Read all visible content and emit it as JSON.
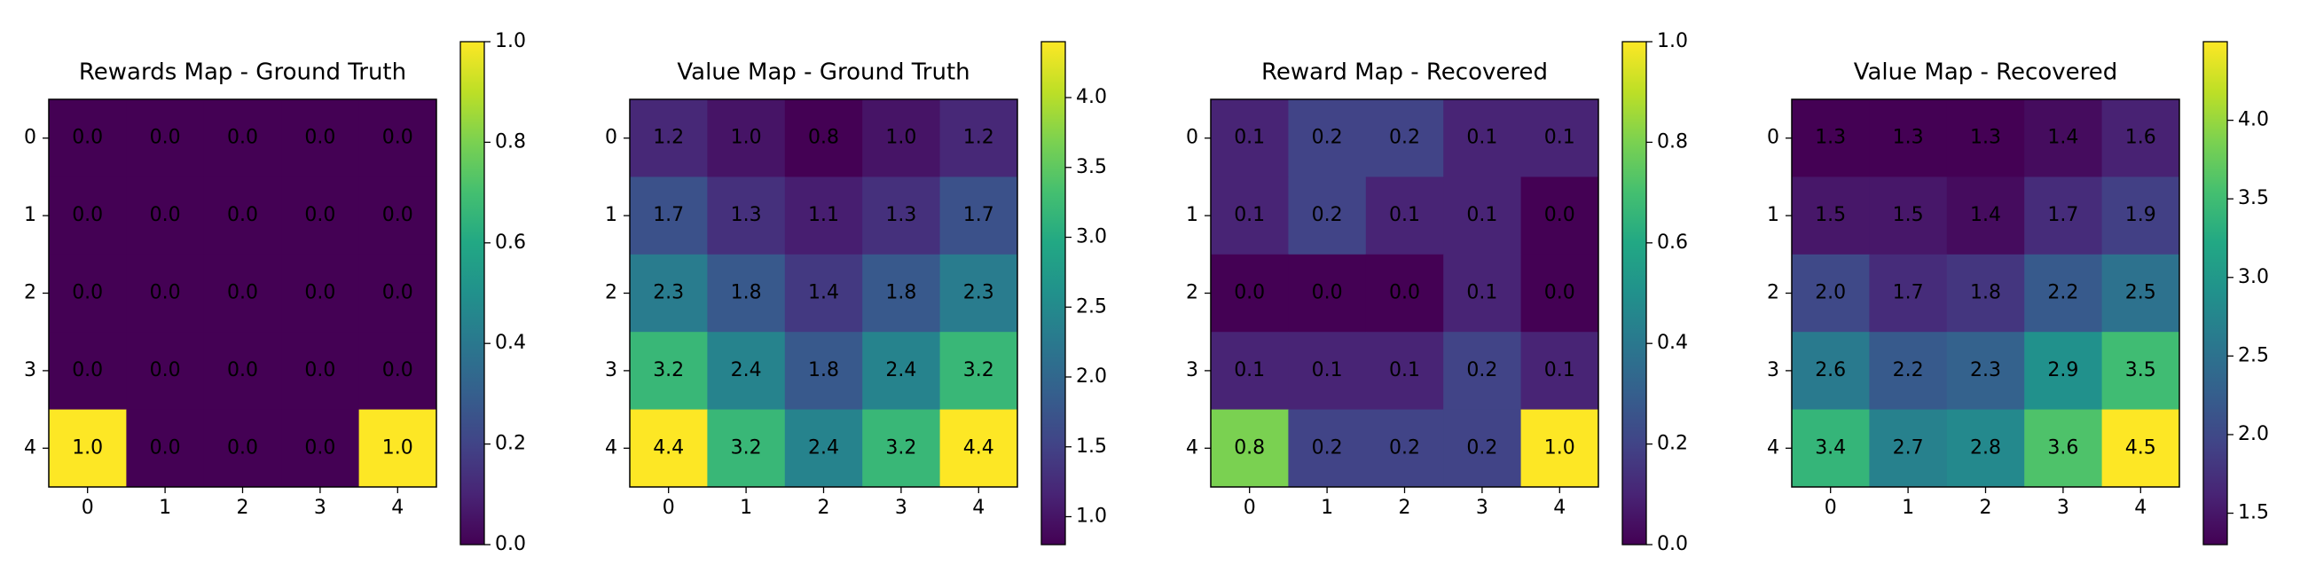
{
  "chart_data": [
    {
      "type": "heatmap",
      "title": "Rewards Map - Ground Truth",
      "colormap": "viridis",
      "xticks": [
        0,
        1,
        2,
        3,
        4
      ],
      "yticks": [
        0,
        1,
        2,
        3,
        4
      ],
      "values": [
        [
          0,
          0,
          0,
          0,
          0
        ],
        [
          0,
          0,
          0,
          0,
          0
        ],
        [
          0,
          0,
          0,
          0,
          0
        ],
        [
          0,
          0,
          0,
          0,
          0
        ],
        [
          1,
          0,
          0,
          0,
          1
        ]
      ],
      "value_labels": [
        [
          "0.0",
          "0.0",
          "0.0",
          "0.0",
          "0.0"
        ],
        [
          "0.0",
          "0.0",
          "0.0",
          "0.0",
          "0.0"
        ],
        [
          "0.0",
          "0.0",
          "0.0",
          "0.0",
          "0.0"
        ],
        [
          "0.0",
          "0.0",
          "0.0",
          "0.0",
          "0.0"
        ],
        [
          "1.0",
          "0.0",
          "0.0",
          "0.0",
          "1.0"
        ]
      ],
      "clim": [
        0,
        1
      ],
      "cticks": [
        {
          "value": 0,
          "label": "0.0"
        },
        0.2,
        0.4,
        0.6,
        0.8,
        {
          "value": 1,
          "label": "1.0"
        }
      ]
    },
    {
      "type": "heatmap",
      "title": "Value Map - Ground Truth",
      "colormap": "viridis",
      "xticks": [
        0,
        1,
        2,
        3,
        4
      ],
      "yticks": [
        0,
        1,
        2,
        3,
        4
      ],
      "values": [
        [
          1.2,
          1.0,
          0.8,
          1.0,
          1.2
        ],
        [
          1.7,
          1.3,
          1.1,
          1.3,
          1.7
        ],
        [
          2.3,
          1.8,
          1.4,
          1.8,
          2.3
        ],
        [
          3.2,
          2.4,
          1.8,
          2.4,
          3.2
        ],
        [
          4.4,
          3.2,
          2.4,
          3.2,
          4.4
        ]
      ],
      "value_labels": [
        [
          "1.2",
          "1.0",
          "0.8",
          "1.0",
          "1.2"
        ],
        [
          "1.7",
          "1.3",
          "1.1",
          "1.3",
          "1.7"
        ],
        [
          "2.3",
          "1.8",
          "1.4",
          "1.8",
          "2.3"
        ],
        [
          "3.2",
          "2.4",
          "1.8",
          "2.4",
          "3.2"
        ],
        [
          "4.4",
          "3.2",
          "2.4",
          "3.2",
          "4.4"
        ]
      ],
      "clim": [
        0.8,
        4.4
      ],
      "cticks": [
        {
          "value": 1,
          "label": "1.0"
        },
        1.5,
        {
          "value": 2,
          "label": "2.0"
        },
        2.5,
        {
          "value": 3,
          "label": "3.0"
        },
        3.5,
        {
          "value": 4,
          "label": "4.0"
        }
      ]
    },
    {
      "type": "heatmap",
      "title": "Reward Map - Recovered",
      "colormap": "viridis",
      "xticks": [
        0,
        1,
        2,
        3,
        4
      ],
      "yticks": [
        0,
        1,
        2,
        3,
        4
      ],
      "values": [
        [
          0.1,
          0.2,
          0.2,
          0.1,
          0.1
        ],
        [
          0.1,
          0.2,
          0.1,
          0.1,
          0.0
        ],
        [
          0.0,
          0.0,
          0.0,
          0.1,
          0.0
        ],
        [
          0.1,
          0.1,
          0.1,
          0.2,
          0.1
        ],
        [
          0.8,
          0.2,
          0.2,
          0.2,
          1.0
        ]
      ],
      "value_labels": [
        [
          "0.1",
          "0.2",
          "0.2",
          "0.1",
          "0.1"
        ],
        [
          "0.1",
          "0.2",
          "0.1",
          "0.1",
          "0.0"
        ],
        [
          "0.0",
          "0.0",
          "0.0",
          "0.1",
          "0.0"
        ],
        [
          "0.1",
          "0.1",
          "0.1",
          "0.2",
          "0.1"
        ],
        [
          "0.8",
          "0.2",
          "0.2",
          "0.2",
          "1.0"
        ]
      ],
      "clim": [
        0,
        1
      ],
      "cticks": [
        {
          "value": 0,
          "label": "0.0"
        },
        0.2,
        0.4,
        0.6,
        0.8,
        {
          "value": 1,
          "label": "1.0"
        }
      ]
    },
    {
      "type": "heatmap",
      "title": "Value Map - Recovered",
      "colormap": "viridis",
      "xticks": [
        0,
        1,
        2,
        3,
        4
      ],
      "yticks": [
        0,
        1,
        2,
        3,
        4
      ],
      "values": [
        [
          1.3,
          1.3,
          1.3,
          1.4,
          1.6
        ],
        [
          1.5,
          1.5,
          1.4,
          1.7,
          1.9
        ],
        [
          2.0,
          1.7,
          1.8,
          2.2,
          2.5
        ],
        [
          2.6,
          2.2,
          2.3,
          2.9,
          3.5
        ],
        [
          3.4,
          2.7,
          2.8,
          3.6,
          4.5
        ]
      ],
      "value_labels": [
        [
          "1.3",
          "1.3",
          "1.3",
          "1.4",
          "1.6"
        ],
        [
          "1.5",
          "1.5",
          "1.4",
          "1.7",
          "1.9"
        ],
        [
          "2.0",
          "1.7",
          "1.8",
          "2.2",
          "2.5"
        ],
        [
          "2.6",
          "2.2",
          "2.3",
          "2.9",
          "3.5"
        ],
        [
          "3.4",
          "2.7",
          "2.8",
          "3.6",
          "4.5"
        ]
      ],
      "clim": [
        1.3,
        4.5
      ],
      "cticks": [
        1.5,
        {
          "value": 2,
          "label": "2.0"
        },
        2.5,
        {
          "value": 3,
          "label": "3.0"
        },
        3.5,
        {
          "value": 4,
          "label": "4.0"
        }
      ]
    }
  ]
}
